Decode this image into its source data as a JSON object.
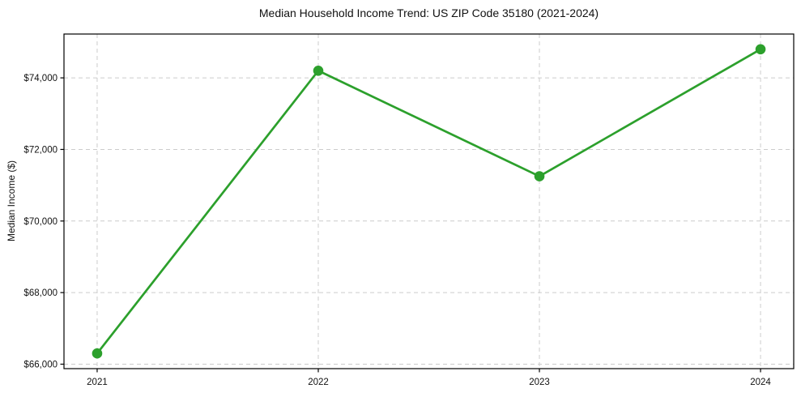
{
  "figure": {
    "background": "#ffffff"
  },
  "chart_data": {
    "type": "line",
    "title": "Median Household Income Trend: US ZIP Code 35180 (2021-2024)",
    "xlabel": "",
    "ylabel": "Median Income ($)",
    "x": [
      2021,
      2022,
      2023,
      2024
    ],
    "x_tick_labels": [
      "2021",
      "2022",
      "2023",
      "2024"
    ],
    "series": [
      {
        "name": "Median Household Income",
        "values": [
          66300,
          74200,
          71250,
          74800
        ],
        "color": "#2ca02c",
        "marker": "circle"
      }
    ],
    "y_ticks": [
      66000,
      68000,
      70000,
      72000,
      74000
    ],
    "y_tick_labels": [
      "$66,000",
      "$68,000",
      "$70,000",
      "$72,000",
      "$74,000"
    ],
    "xlim": [
      2020.85,
      2024.15
    ],
    "ylim": [
      65875,
      75225
    ],
    "grid": {
      "show": true,
      "style": "dashed",
      "color": "#cccccc"
    },
    "legend_position": "none",
    "colors": {
      "spine": "#000000",
      "tick_text": "#111111",
      "title_text": "#111111",
      "plot_background": "#ffffff"
    }
  }
}
